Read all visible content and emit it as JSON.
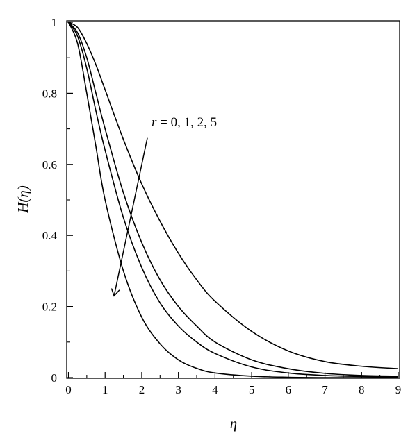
{
  "chart_data": {
    "type": "line",
    "title": "",
    "xlabel": "η",
    "ylabel": "H(η)",
    "xlim": [
      0,
      9
    ],
    "ylim": [
      0,
      1
    ],
    "xticks": [
      "0",
      "1",
      "2",
      "3",
      "4",
      "5",
      "6",
      "7",
      "8",
      "9"
    ],
    "yticks": [
      "0",
      "0.2",
      "0.4",
      "0.6",
      "0.8",
      "1"
    ],
    "grid": false,
    "legend": "none",
    "annotation": {
      "text_var": "r",
      "text_rest": " = 0, 1, 2, 5",
      "arrow_from": [
        2.4,
        0.7
      ],
      "arrow_to": [
        1.15,
        0.23
      ]
    },
    "x": [
      0,
      0.25,
      0.5,
      0.75,
      1,
      1.5,
      2,
      2.5,
      3,
      3.5,
      4,
      5,
      6,
      7,
      8,
      9
    ],
    "series": [
      {
        "values": [
          1.0,
          0.985,
          0.94,
          0.88,
          0.81,
          0.67,
          0.545,
          0.44,
          0.35,
          0.275,
          0.215,
          0.13,
          0.075,
          0.045,
          0.032,
          0.025
        ]
      },
      {
        "values": [
          1.0,
          0.97,
          0.9,
          0.8,
          0.7,
          0.52,
          0.38,
          0.275,
          0.2,
          0.145,
          0.1,
          0.05,
          0.025,
          0.012,
          0.006,
          0.004
        ]
      },
      {
        "values": [
          1.0,
          0.96,
          0.87,
          0.75,
          0.64,
          0.45,
          0.31,
          0.21,
          0.145,
          0.1,
          0.068,
          0.03,
          0.013,
          0.006,
          0.003,
          0.002
        ]
      },
      {
        "values": [
          1.0,
          0.94,
          0.8,
          0.65,
          0.5,
          0.3,
          0.17,
          0.095,
          0.05,
          0.026,
          0.013,
          0.004,
          0.001,
          0.0,
          0.0,
          0.0
        ]
      }
    ]
  }
}
